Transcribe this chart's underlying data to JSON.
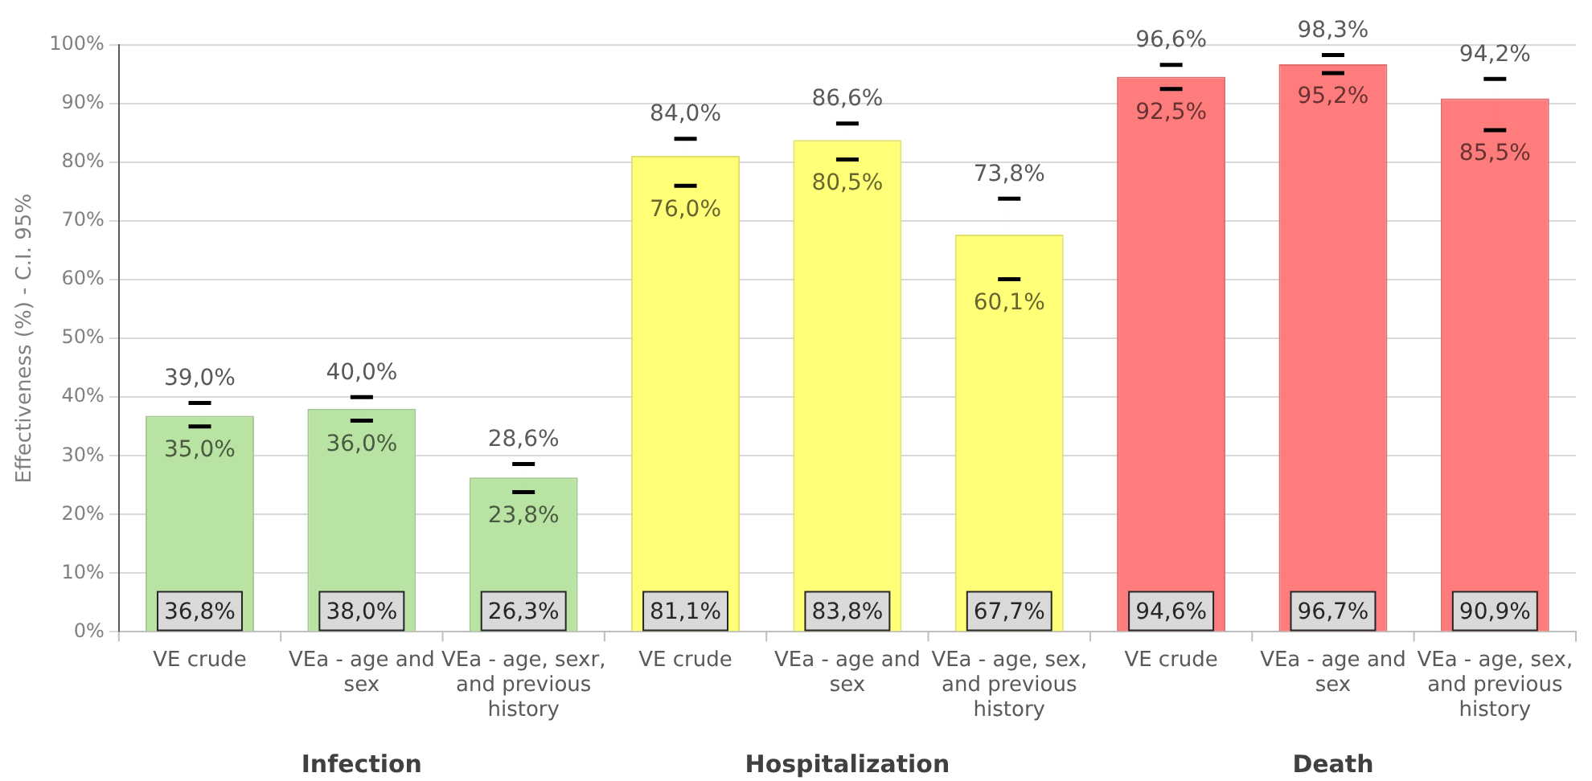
{
  "chart_data": {
    "type": "bar",
    "ylabel": "Effectiveness (%) - C.I. 95%",
    "categories": [
      "VE crude",
      "VEa - age and sex",
      "VEa - age, sexr, and previous history",
      "VE crude",
      "VEa - age and sex",
      "VEa - age, sex, and previous history",
      "VE crude",
      "VEa - age and sex",
      "VEa - age, sex, and previous history"
    ],
    "values": [
      36.8,
      38.0,
      26.3,
      81.1,
      83.8,
      67.7,
      94.6,
      96.7,
      90.9
    ],
    "value_labels": [
      "36,8%",
      "38,0%",
      "26,3%",
      "81,1%",
      "83,8%",
      "67,7%",
      "94,6%",
      "96,7%",
      "90,9%"
    ],
    "colors": [
      "#b9e3a3",
      "#b9e3a3",
      "#b9e3a3",
      "#ffff78",
      "#ffff78",
      "#ffff78",
      "#ff7c7c",
      "#ff7c7c",
      "#ff7c7c"
    ],
    "errors": [
      [
        35.0,
        39.0
      ],
      [
        36.0,
        40.0
      ],
      [
        23.8,
        28.6
      ],
      [
        76.0,
        84.0
      ],
      [
        80.5,
        86.6
      ],
      [
        60.1,
        73.8
      ],
      [
        92.5,
        96.6
      ],
      [
        95.2,
        98.3
      ],
      [
        85.5,
        94.2
      ]
    ],
    "annotations": [
      "39,0%",
      "35,0%",
      "40,0%",
      "36,0%",
      "28,6%",
      "23,8%",
      "84,0%",
      "76,0%",
      "86,6%",
      "80,5%",
      "73,8%",
      "60,1%",
      "96,6%",
      "92,5%",
      "98,3%",
      "95,2%",
      "94,2%",
      "85,5%",
      "Infection",
      "Hospitalization",
      "Death"
    ],
    "ylim": [
      0,
      100
    ],
    "yticks": [
      {
        "value": 0,
        "label": "0%"
      },
      {
        "value": 10,
        "label": "10%"
      },
      {
        "value": 20,
        "label": "20%"
      },
      {
        "value": 30,
        "label": "30%"
      },
      {
        "value": 40,
        "label": "40%"
      },
      {
        "value": 50,
        "label": "50%"
      },
      {
        "value": 60,
        "label": "60%"
      },
      {
        "value": 70,
        "label": "70%"
      },
      {
        "value": 80,
        "label": "80%"
      },
      {
        "value": 90,
        "label": "90%"
      },
      {
        "value": 100,
        "label": "100%"
      }
    ],
    "grid": "y",
    "legend": false
  }
}
